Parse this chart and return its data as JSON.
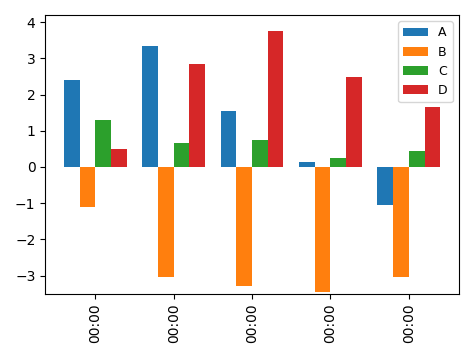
{
  "series": {
    "A": [
      2.4,
      3.35,
      1.55,
      0.15,
      -1.05
    ],
    "B": [
      -1.1,
      -3.05,
      -3.3,
      -3.45,
      -3.05
    ],
    "C": [
      1.3,
      0.65,
      0.75,
      0.25,
      0.45
    ],
    "D": [
      0.5,
      2.85,
      3.75,
      2.5,
      1.65
    ]
  },
  "colors": {
    "A": "#1f77b4",
    "B": "#ff7f0e",
    "C": "#2ca02c",
    "D": "#d62728"
  },
  "x_labels": [
    "00:00",
    "00:00",
    "00:00",
    "00:00",
    "00:00"
  ],
  "ylim": [
    -3.5,
    4.2
  ],
  "bar_width": 0.2,
  "legend_labels": [
    "A",
    "B",
    "C",
    "D"
  ],
  "legend_fontsize": 9,
  "tick_fontsize": 10
}
